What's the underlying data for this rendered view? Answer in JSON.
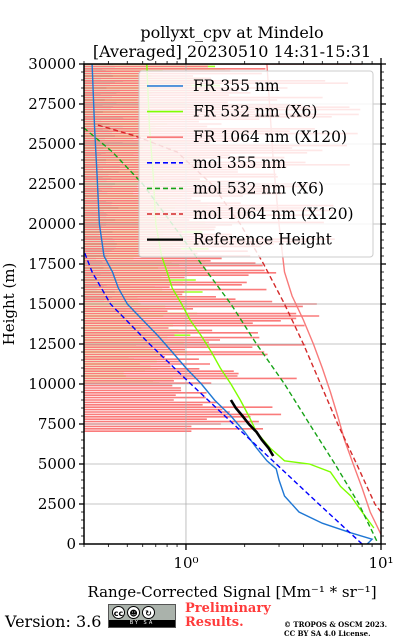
{
  "chart_data": {
    "type": "line",
    "title": "pollyxt_cpv at Mindelo",
    "subtitle": "[Averaged] 20230510 14:31-15:31",
    "xlabel": "Range-Corrected Signal [Mm⁻¹ * sr⁻¹]",
    "ylabel": "Height (m)",
    "xscale": "log",
    "xlim": [
      0.3,
      10
    ],
    "ylim": [
      0,
      30000
    ],
    "x_ticks": [
      1,
      10
    ],
    "x_tick_labels": [
      "10⁰",
      "10¹"
    ],
    "y_ticks": [
      0,
      2500,
      5000,
      7500,
      10000,
      12500,
      15000,
      17500,
      20000,
      22500,
      25000,
      27500,
      30000
    ],
    "y_tick_labels": [
      "0",
      "2500",
      "5000",
      "7500",
      "10000",
      "12500",
      "15000",
      "17500",
      "20000",
      "22500",
      "25000",
      "27500",
      "30000"
    ],
    "grid": true,
    "legend_position": "top-right",
    "series": [
      {
        "name": "FR 355 nm",
        "color": "#1f77d4",
        "style": "solid",
        "points": [
          [
            8.5,
            0
          ],
          [
            9.0,
            300
          ],
          [
            7.0,
            700
          ],
          [
            5.0,
            1300
          ],
          [
            3.8,
            2000
          ],
          [
            3.2,
            3000
          ],
          [
            3.0,
            4000
          ],
          [
            2.9,
            4700
          ],
          [
            2.6,
            5200
          ],
          [
            2.3,
            6000
          ],
          [
            2.0,
            7000
          ],
          [
            1.7,
            8000
          ],
          [
            1.4,
            9000
          ],
          [
            1.2,
            10000
          ],
          [
            1.0,
            11000
          ],
          [
            0.85,
            12000
          ],
          [
            0.72,
            13000
          ],
          [
            0.6,
            14000
          ],
          [
            0.5,
            15000
          ],
          [
            0.45,
            16000
          ],
          [
            0.42,
            17000
          ],
          [
            0.38,
            18000
          ],
          [
            0.36,
            20000
          ],
          [
            0.35,
            23000
          ],
          [
            0.34,
            26000
          ],
          [
            0.33,
            30000
          ]
        ]
      },
      {
        "name": "FR 532 nm (X6)",
        "color": "#7fff00",
        "style": "solid",
        "points": [
          [
            9.2,
            1000
          ],
          [
            8.0,
            2000
          ],
          [
            7.0,
            3000
          ],
          [
            6.2,
            3600
          ],
          [
            5.5,
            4500
          ],
          [
            4.3,
            5000
          ],
          [
            3.2,
            5200
          ],
          [
            2.7,
            6000
          ],
          [
            2.3,
            7000
          ],
          [
            2.1,
            8000
          ],
          [
            1.9,
            9000
          ],
          [
            1.7,
            10000
          ],
          [
            1.5,
            11000
          ],
          [
            1.35,
            12000
          ],
          [
            1.2,
            13000
          ],
          [
            1.05,
            14000
          ],
          [
            0.95,
            15000
          ],
          [
            0.85,
            16000
          ],
          [
            0.8,
            17000
          ],
          [
            0.75,
            18000
          ],
          [
            0.7,
            20000
          ],
          [
            0.68,
            23000
          ],
          [
            0.65,
            26000
          ],
          [
            0.63,
            30000
          ]
        ]
      },
      {
        "name": "FR 1064 nm (X120)",
        "color": "#f87a7a",
        "style": "solid",
        "points": [
          [
            10.0,
            600
          ],
          [
            8.8,
            2000
          ],
          [
            8.0,
            3500
          ],
          [
            7.2,
            5000
          ],
          [
            6.5,
            6500
          ],
          [
            6.0,
            8000
          ],
          [
            5.5,
            9500
          ],
          [
            5.0,
            11000
          ],
          [
            4.5,
            12500
          ],
          [
            4.0,
            14000
          ],
          [
            3.5,
            15500
          ],
          [
            3.2,
            17000
          ],
          [
            3.0,
            20000
          ],
          [
            2.8,
            24000
          ],
          [
            2.6,
            30000
          ]
        ]
      },
      {
        "name": "mol 355 nm",
        "color": "#0000ff",
        "style": "dashed",
        "points": [
          [
            8.0,
            0
          ],
          [
            4.8,
            2500
          ],
          [
            2.9,
            5000
          ],
          [
            1.75,
            7500
          ],
          [
            1.06,
            10000
          ],
          [
            0.65,
            12500
          ],
          [
            0.41,
            15000
          ],
          [
            0.33,
            17000
          ],
          [
            0.3,
            18300
          ]
        ]
      },
      {
        "name": "mol 532 nm (X6)",
        "color": "#16a316",
        "style": "dashed",
        "points": [
          [
            9.5,
            200
          ],
          [
            7.7,
            2500
          ],
          [
            5.8,
            5000
          ],
          [
            4.3,
            7500
          ],
          [
            3.2,
            10000
          ],
          [
            2.3,
            12500
          ],
          [
            1.7,
            15000
          ],
          [
            1.2,
            17500
          ],
          [
            0.85,
            20000
          ],
          [
            0.6,
            22500
          ],
          [
            0.42,
            24500
          ],
          [
            0.3,
            26000
          ]
        ]
      },
      {
        "name": "mol 1064 nm (X120)",
        "color": "#d42a2a",
        "style": "dashed",
        "points": [
          [
            10.0,
            2000
          ],
          [
            9.3,
            2500
          ],
          [
            7.5,
            5000
          ],
          [
            6.0,
            7500
          ],
          [
            4.9,
            10000
          ],
          [
            4.0,
            12500
          ],
          [
            3.2,
            15000
          ],
          [
            2.5,
            17500
          ],
          [
            1.9,
            20000
          ],
          [
            1.35,
            22500
          ],
          [
            0.9,
            24500
          ],
          [
            0.55,
            25500
          ],
          [
            0.35,
            26200
          ]
        ]
      },
      {
        "name": "Reference Height",
        "color": "#000000",
        "style": "solid",
        "points": [
          [
            2.8,
            5500
          ],
          [
            2.65,
            6000
          ],
          [
            2.45,
            6500
          ],
          [
            2.3,
            7000
          ],
          [
            2.1,
            7500
          ],
          [
            1.95,
            8000
          ],
          [
            1.8,
            8500
          ],
          [
            1.7,
            9000
          ]
        ]
      }
    ],
    "noise_bands": [
      {
        "series": "FR 355 nm",
        "color": "#1f77d4",
        "from_height": 15000,
        "x_range": [
          0.3,
          0.5
        ]
      },
      {
        "series": "FR 532 nm (X6)",
        "color": "#9dff22",
        "from_height": 10000,
        "x_range": [
          0.3,
          1.8
        ]
      },
      {
        "series": "FR 1064 nm (X120)",
        "color": "#fa7b7b",
        "from_height": 7000,
        "x_range": [
          0.3,
          10
        ]
      }
    ]
  },
  "footer": {
    "version": "Version: 3.6",
    "cc_icons": [
      "cc",
      "by",
      "sa"
    ],
    "cc_caption": "BY SA",
    "preliminary_line1": "Preliminary",
    "preliminary_line2": "Results.",
    "copyright_line1": "© TROPOS & OSCM 2023.",
    "copyright_line2": "CC BY SA 4.0 License."
  }
}
